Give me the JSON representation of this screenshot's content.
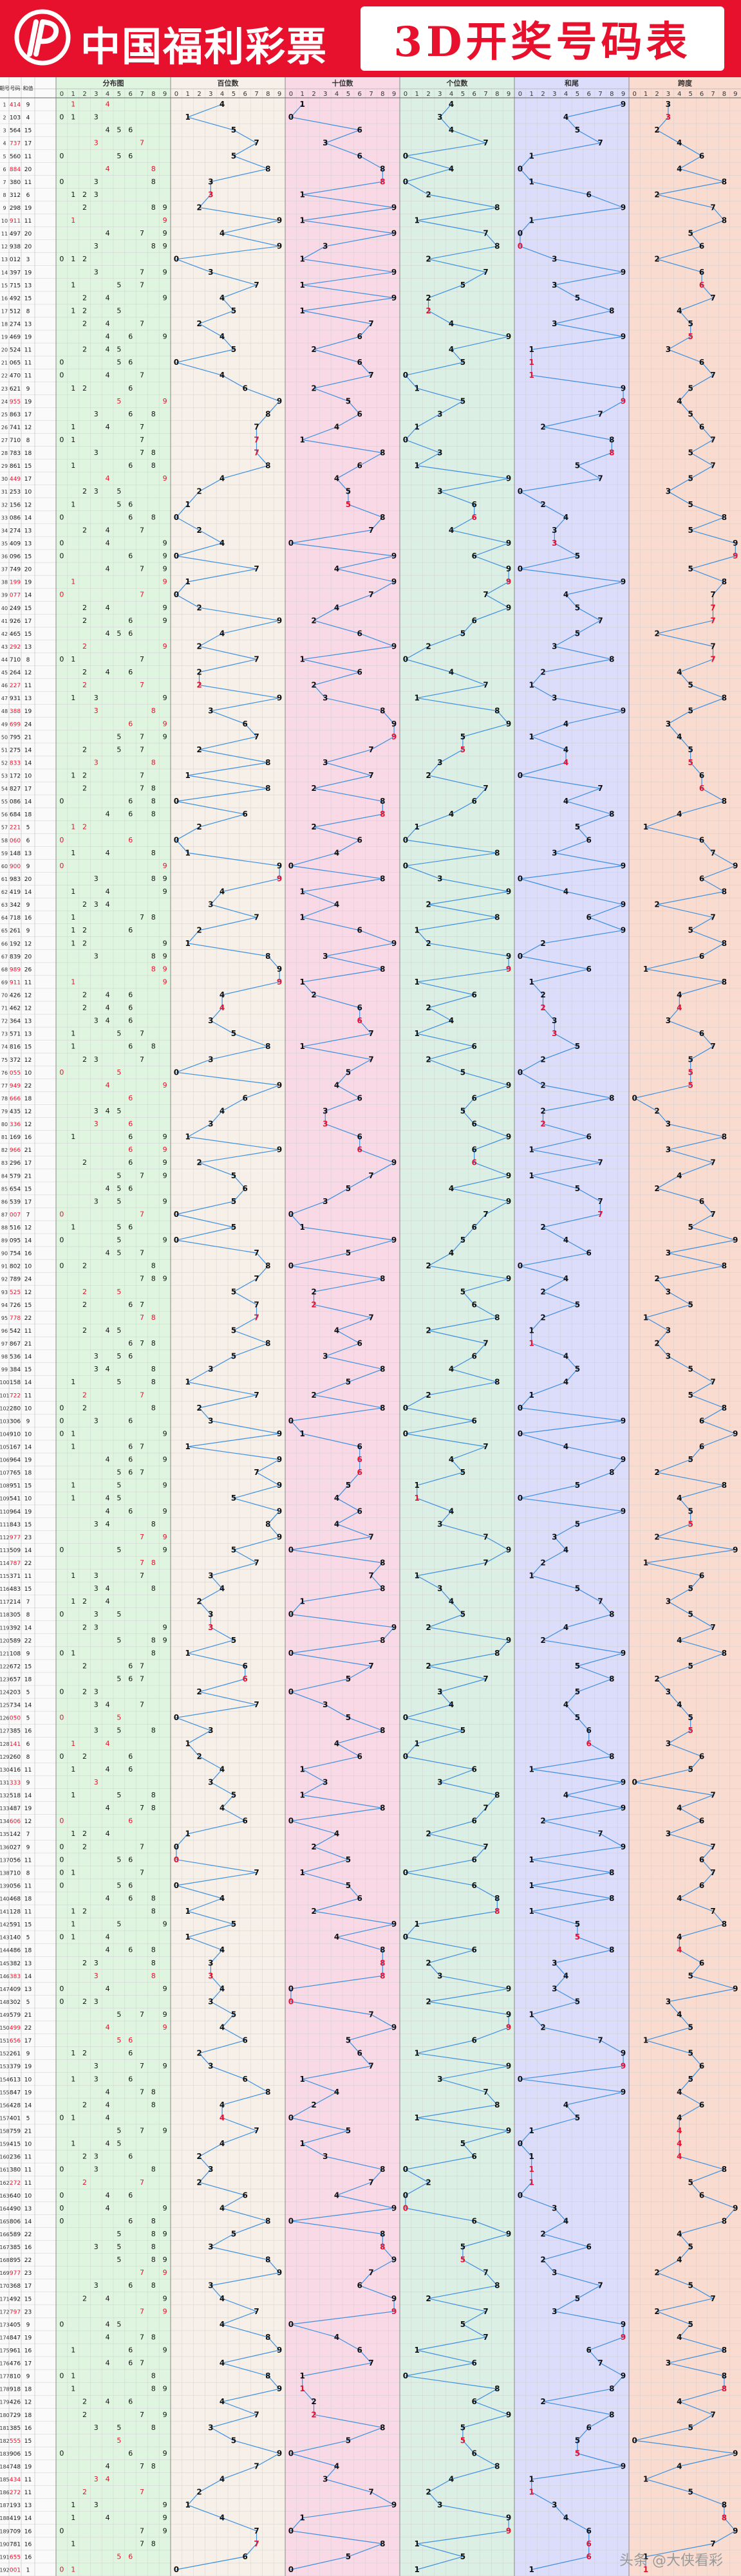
{
  "header": {
    "brand": "中国福利彩票",
    "title": "3D开奖号码表",
    "colors": {
      "banner": "#e8112d",
      "title_text": "#e8112d",
      "line": "#3d8fe0",
      "repeat_digit": "#e8112d"
    }
  },
  "watermark": "头条 @大侠看彩",
  "chart_data": {
    "type": "table",
    "columns": [
      "期号",
      "号码",
      "和值",
      "分布图",
      "百位数",
      "十位数",
      "个位数",
      "和尾",
      "跨度"
    ],
    "section_labels": [
      "分布图",
      "百位数",
      "十位数",
      "个位数",
      "和尾",
      "跨度"
    ],
    "digits": [
      "0",
      "1",
      "2",
      "3",
      "4",
      "5",
      "6",
      "7",
      "8",
      "9"
    ],
    "grid": true,
    "draws": [
      "414",
      "103",
      "564",
      "737",
      "560",
      "884",
      "380",
      "312",
      "298",
      "911",
      "497",
      "938",
      "012",
      "397",
      "715",
      "492",
      "512",
      "274",
      "469",
      "524",
      "065",
      "470",
      "621",
      "955",
      "863",
      "741",
      "710",
      "783",
      "861",
      "449",
      "253",
      "156",
      "086",
      "274",
      "409",
      "096",
      "749",
      "199",
      "077",
      "249",
      "926",
      "465",
      "292",
      "710",
      "264",
      "227",
      "931",
      "388",
      "699",
      "795",
      "275",
      "833",
      "172",
      "827",
      "086",
      "684",
      "221",
      "060",
      "148",
      "900",
      "983",
      "419",
      "342",
      "718",
      "261",
      "192",
      "839",
      "989",
      "911",
      "426",
      "462",
      "364",
      "571",
      "816",
      "372",
      "055",
      "949",
      "666",
      "435",
      "336",
      "169",
      "966",
      "296",
      "579",
      "654",
      "539",
      "007",
      "516",
      "095",
      "754",
      "802",
      "789",
      "525",
      "726",
      "778",
      "542",
      "867",
      "536",
      "384",
      "158",
      "722",
      "280",
      "306",
      "910",
      "167",
      "964",
      "765",
      "951",
      "541",
      "964",
      "843",
      "977",
      "509",
      "787",
      "371",
      "483",
      "214",
      "305",
      "392",
      "589",
      "108",
      "672",
      "657",
      "203",
      "734",
      "050",
      "385",
      "141",
      "260",
      "416",
      "333",
      "518",
      "487",
      "606",
      "142",
      "027",
      "056",
      "710",
      "056",
      "468",
      "128",
      "591",
      "140",
      "486",
      "382",
      "383",
      "409",
      "302",
      "579",
      "499",
      "656",
      "261",
      "379",
      "613",
      "847",
      "428",
      "401",
      "759",
      "415",
      "236",
      "380",
      "272",
      "640",
      "490",
      "806",
      "589",
      "385",
      "895",
      "977",
      "368",
      "492",
      "797",
      "405",
      "847",
      "961",
      "476",
      "810",
      "918",
      "426",
      "729",
      "385",
      "555",
      "906",
      "748",
      "434",
      "272",
      "193",
      "419",
      "709",
      "781",
      "655",
      "001"
    ]
  }
}
